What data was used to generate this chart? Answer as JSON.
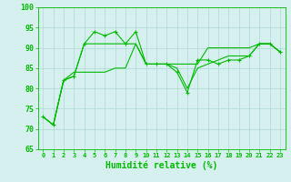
{
  "x": [
    0,
    1,
    2,
    3,
    4,
    5,
    6,
    7,
    8,
    9,
    10,
    11,
    12,
    13,
    14,
    15,
    16,
    17,
    18,
    19,
    20,
    21,
    22,
    23
  ],
  "line1": [
    73,
    71,
    82,
    83,
    91,
    94,
    93,
    94,
    91,
    94,
    86,
    86,
    86,
    84,
    79,
    87,
    87,
    86,
    87,
    87,
    88,
    91,
    91,
    89
  ],
  "line2": [
    73,
    71,
    82,
    83,
    91,
    91,
    91,
    91,
    91,
    91,
    86,
    86,
    86,
    86,
    86,
    86,
    90,
    90,
    90,
    90,
    90,
    91,
    91,
    89
  ],
  "line3": [
    73,
    71,
    82,
    84,
    84,
    84,
    84,
    85,
    85,
    91,
    86,
    86,
    86,
    85,
    80,
    85,
    86,
    87,
    88,
    88,
    88,
    91,
    91,
    89
  ],
  "background_color": "#d5f0ef",
  "grid_color": "#b0d8d8",
  "line_color": "#00bb00",
  "xlabel": "Humidité relative (%)",
  "ylim": [
    65,
    100
  ],
  "yticks": [
    65,
    70,
    75,
    80,
    85,
    90,
    95,
    100
  ],
  "xtick_fontsize": 5.0,
  "ytick_fontsize": 6.0,
  "xlabel_fontsize": 7.0
}
